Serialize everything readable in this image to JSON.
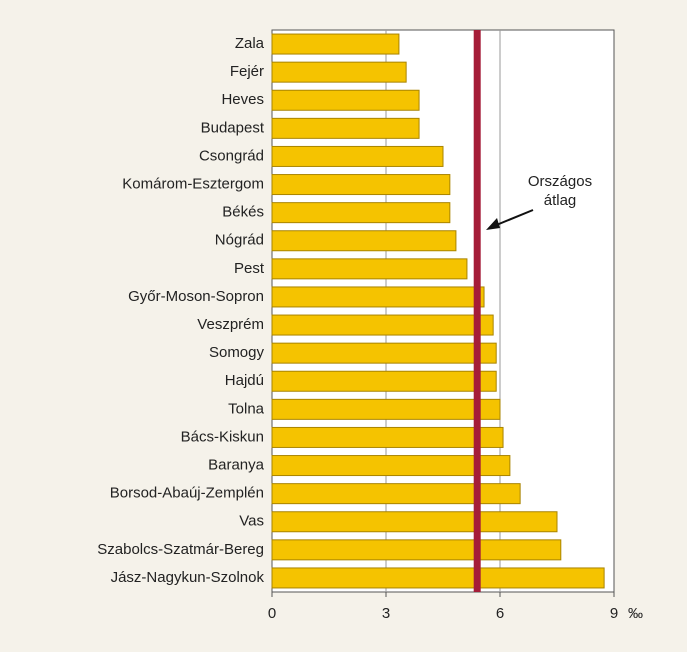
{
  "chart_data": {
    "type": "barh",
    "categories": [
      "Zala",
      "Fejér",
      "Heves",
      "Budapest",
      "Csongrád",
      "Komárom-Esztergom",
      "Békés",
      "Nógrád",
      "Pest",
      "Győr-Moson-Sopron",
      "Veszprém",
      "Somogy",
      "Hajdú",
      "Tolna",
      "Bács-Kiskun",
      "Baranya",
      "Borsod-Abaúj-Zemplén",
      "Vas",
      "Szabolcs-Szatmár-Bereg",
      "Jász-Nagykun-Szolnok"
    ],
    "values": [
      3.34,
      3.53,
      3.87,
      3.87,
      4.5,
      4.68,
      4.68,
      4.84,
      5.13,
      5.58,
      5.82,
      5.9,
      5.9,
      6.0,
      6.08,
      6.26,
      6.53,
      7.5,
      7.6,
      8.74
    ],
    "color": "#f5c300",
    "xlim": [
      0,
      9
    ],
    "xticks": [
      0,
      3,
      6,
      9
    ],
    "x_unit": "‰",
    "grid": true,
    "average": {
      "value": 5.4,
      "color": "#a51d38",
      "label": [
        "Országos",
        "átlag"
      ]
    }
  }
}
